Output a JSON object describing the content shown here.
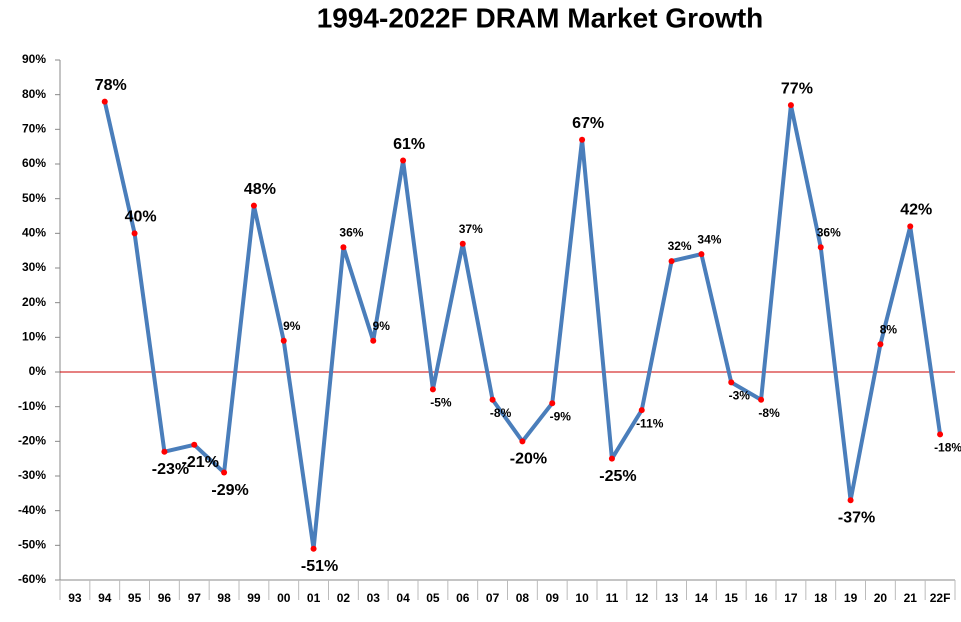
{
  "chart_data": {
    "type": "line",
    "title": "1994-2022F DRAM Market Growth",
    "categories": [
      "93",
      "94",
      "95",
      "96",
      "97",
      "98",
      "99",
      "00",
      "01",
      "02",
      "03",
      "04",
      "05",
      "06",
      "07",
      "08",
      "09",
      "10",
      "11",
      "12",
      "13",
      "14",
      "15",
      "16",
      "17",
      "18",
      "19",
      "20",
      "21",
      "22F"
    ],
    "series": [
      {
        "name": "DRAM Market Growth",
        "color": "#4a7ebb",
        "marker_color": "#ff0000",
        "values": [
          null,
          78,
          40,
          -23,
          -21,
          -29,
          48,
          9,
          -51,
          36,
          9,
          61,
          -5,
          37,
          -8,
          -20,
          -9,
          67,
          -25,
          -11,
          32,
          34,
          -3,
          -8,
          77,
          36,
          -37,
          8,
          42,
          -18
        ],
        "value_labels": [
          null,
          "78%",
          "40%",
          "-23%",
          "-21%",
          "-29%",
          "48%",
          "9%",
          "-51%",
          "36%",
          "9%",
          "61%",
          "-5%",
          "37%",
          "-8%",
          "-20%",
          "-9%",
          "67%",
          "-25%",
          "-11%",
          "32%",
          "34%",
          "-3%",
          "-8%",
          "77%",
          "36%",
          "-37%",
          "8%",
          "42%",
          "-18%"
        ]
      }
    ],
    "ylim": [
      -60,
      90
    ],
    "yticks": [
      {
        "value": -60,
        "label": "-60%"
      },
      {
        "value": -50,
        "label": "-50%"
      },
      {
        "value": -40,
        "label": "-40%"
      },
      {
        "value": -30,
        "label": "-30%"
      },
      {
        "value": -20,
        "label": "-20%"
      },
      {
        "value": -10,
        "label": "-10%"
      },
      {
        "value": 0,
        "label": "0%"
      },
      {
        "value": 10,
        "label": "10%"
      },
      {
        "value": 20,
        "label": "20%"
      },
      {
        "value": 30,
        "label": "30%"
      },
      {
        "value": 40,
        "label": "40%"
      },
      {
        "value": 50,
        "label": "50%"
      },
      {
        "value": 60,
        "label": "60%"
      },
      {
        "value": 70,
        "label": "70%"
      },
      {
        "value": 80,
        "label": "80%"
      },
      {
        "value": 90,
        "label": "90%"
      }
    ],
    "zero_line_color": "#cc0000",
    "grid": false
  }
}
